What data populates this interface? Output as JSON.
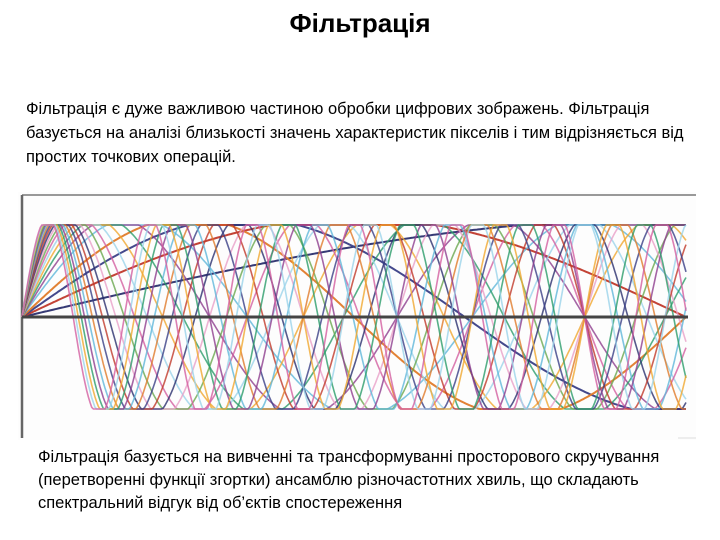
{
  "slide": {
    "title": "Фільтрація",
    "intro": "Фільтрація є дуже важливою частиною обробки цифрових зображень. Фільтрація базується на аналізі близькості значень характеристик пікселів і тим відрізняється від простих точкових операцій.",
    "caption": "Фільтрація базується на вивченні та трансформуванні просторового скручування (перетворенні функції згортки) ансамблю різночастотних хвиль, що складають спектральний відгук від об’єктів спостереження"
  },
  "figure": {
    "description_icon": "sine-waves-illustration",
    "wave_colors": [
      "#2b2f6e",
      "#c0392b",
      "#3a3f86",
      "#e07b2a",
      "#5fb6d9",
      "#8e3f8e",
      "#2c9c6a",
      "#f0a830",
      "#9bd3ea",
      "#d35fa0",
      "#6aa84f",
      "#e8a0c8"
    ]
  }
}
